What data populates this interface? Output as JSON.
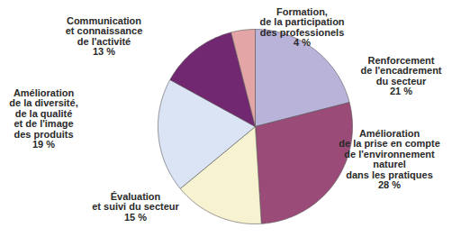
{
  "chart_data": {
    "type": "pie",
    "categories": [
      "Renforcement\nde l'encadrement\ndu secteur",
      "Amélioration\nde la prise en compte\nde l'environnement\nnaturel\ndans les pratiques",
      "Évaluation\net suivi du secteur",
      "Amélioration\nde la diversité,\nde la qualité\net de l'image\ndes produits",
      "Communication\net connaissance\nde l'activité",
      "Formation,\nde la participation\ndes professionels"
    ],
    "values": [
      21,
      28,
      15,
      19,
      13,
      4
    ],
    "value_labels": [
      "21 %",
      "28 %",
      "15 %",
      "19 %",
      "13 %",
      "4 %"
    ],
    "colors": [
      "#b9b3da",
      "#9b4b78",
      "#f7f2cf",
      "#dbe4f4",
      "#722870",
      "#e3a5a5"
    ],
    "data_labels": true
  }
}
